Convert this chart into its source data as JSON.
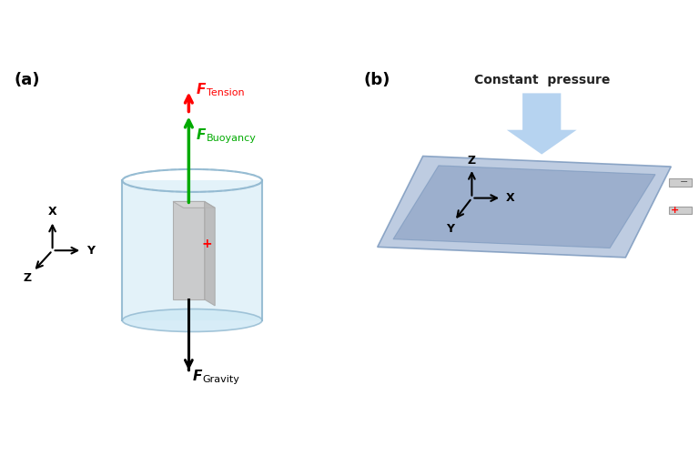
{
  "bg_color": "#ffffff",
  "panel_a_label": "(a)",
  "panel_b_label": "(b)",
  "cylinder_color": "#cde8f5",
  "cylinder_edge_color": "#90b8d0",
  "cell_color": "#c8c8c8",
  "cell_edge_color": "#aaaaaa",
  "tension_color": "#ff0000",
  "buoyancy_color": "#00aa00",
  "gravity_color": "#111111",
  "tension_label": "Tension",
  "buoyancy_label": "Buoyancy",
  "gravity_label": "Gravity",
  "pouch_outer_color": "#a8bcd8",
  "pouch_inner_color": "#8098be",
  "pouch_edge_color": "#7090b8",
  "pressure_arrow_color": "#aaccee",
  "pressure_label": "Constant  pressure",
  "tab_color": "#cccccc",
  "tab_edge_color": "#999999"
}
